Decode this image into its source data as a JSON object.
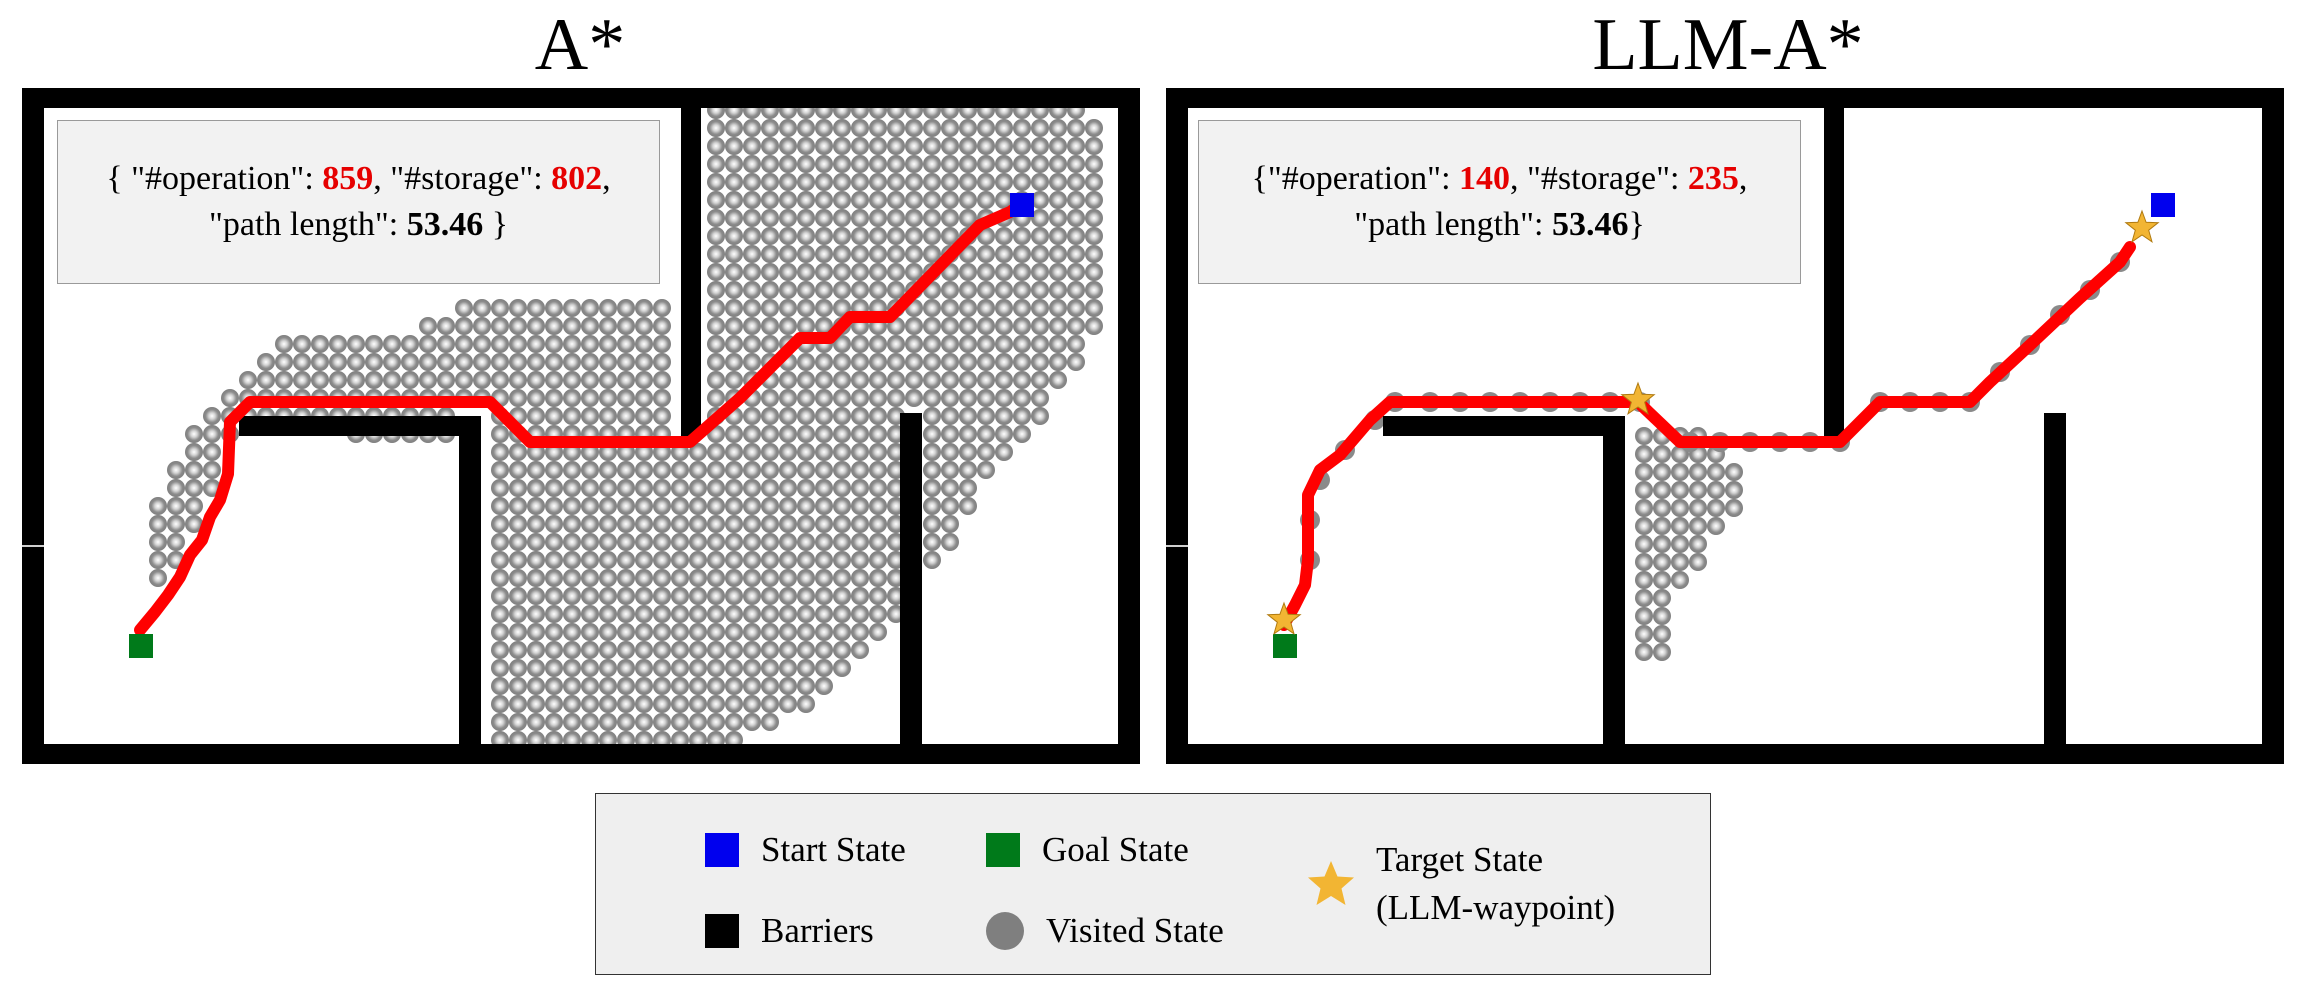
{
  "panels": [
    {
      "title": "A*",
      "stats": {
        "operation_key": "\"#operation\"",
        "operation": "859",
        "storage_key": "\"#storage\"",
        "storage": "802",
        "path_key": "\"path length\"",
        "path_length": "53.46"
      }
    },
    {
      "title": "LLM-A*",
      "stats": {
        "operation_key": "\"#operation\"",
        "operation": "140",
        "storage_key": "\"#storage\"",
        "storage": "235",
        "path_key": "\"path length\"",
        "path_length": "53.46"
      }
    }
  ],
  "legend": {
    "start": "Start State",
    "goal": "Goal State",
    "target_line1": "Target State",
    "target_line2": "(LLM-waypoint)",
    "barriers": "Barriers",
    "visited": "Visited State"
  },
  "colors": {
    "start": "#0000ee",
    "goal": "#007a1a",
    "path": "#ff0000",
    "visited": "#7f7f7f",
    "barrier": "#000000",
    "star": "#f2b533",
    "number_highlight": "#e60000"
  }
}
